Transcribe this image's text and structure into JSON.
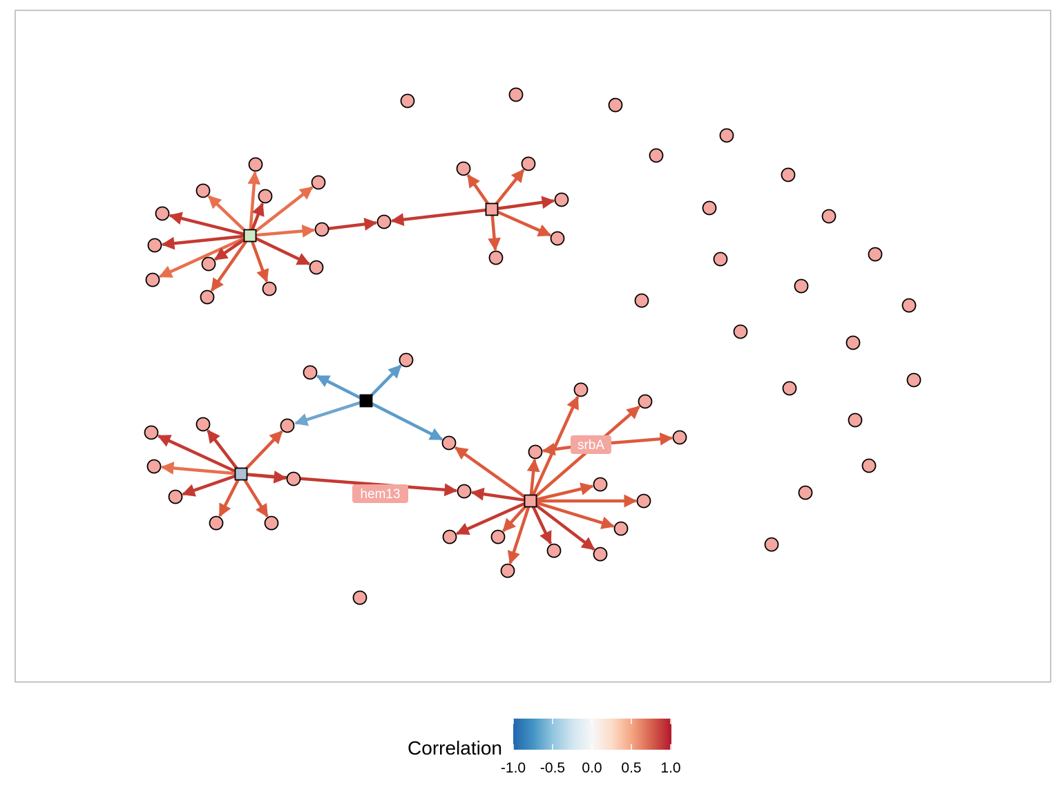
{
  "colors": {
    "panel_border": "#b3b3b3",
    "node_fill": "#f4a6a0",
    "node_stroke": "#000000",
    "hub_green": "#cfe8c4",
    "hub_blue": "#aebfd6",
    "hub_pink": "#f4a6a0",
    "hub_black": "#000000",
    "label_bg": "#f4a6a0",
    "positive_strong": "#c43a32",
    "positive_mid": "#dc5a3c",
    "positive_light": "#e8704e",
    "negative_mid": "#5c9ccb",
    "negative_light": "#6fa6cf"
  },
  "network": {
    "node_labels": [
      "srbA",
      "hem13"
    ]
  },
  "legend": {
    "title": "Correlation",
    "ticks": [
      "-1.0",
      "-0.5",
      "0.0",
      "0.5",
      "1.0"
    ],
    "gradient": [
      "#2166ac",
      "#4393c3",
      "#92c5de",
      "#d1e5f0",
      "#f7f7f7",
      "#fddbc7",
      "#f4a582",
      "#d6604d",
      "#b2182b"
    ]
  }
}
